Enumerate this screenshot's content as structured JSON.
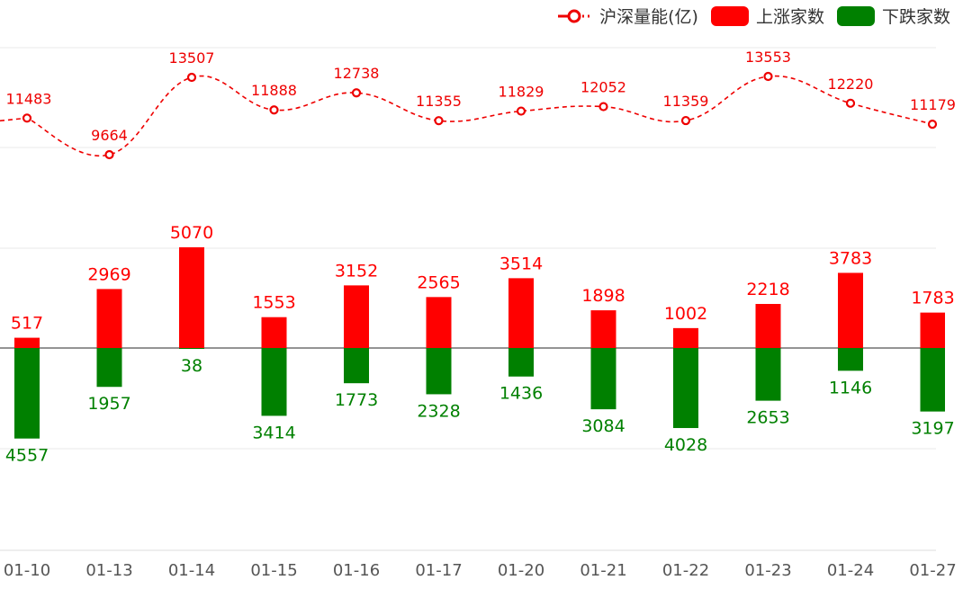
{
  "colors": {
    "up": "#ff0000",
    "down": "#008000",
    "line": "#ee0000",
    "grid": "#e8e8e8",
    "axis": "#555555",
    "tick": "#555555"
  },
  "legend": {
    "volume": "沪深量能(亿)",
    "up": "上涨家数",
    "down": "下跌家数"
  },
  "chart_data": {
    "type": "bar",
    "categories": [
      "01-10",
      "01-13",
      "01-14",
      "01-15",
      "01-16",
      "01-17",
      "01-20",
      "01-21",
      "01-22",
      "01-23",
      "01-24",
      "01-27"
    ],
    "series": [
      {
        "name": "沪深量能(亿)",
        "type": "line",
        "values": [
          11483,
          9664,
          13507,
          11888,
          12738,
          11355,
          11829,
          12052,
          11359,
          13553,
          12220,
          11179
        ]
      },
      {
        "name": "上涨家数",
        "type": "bar",
        "values": [
          517,
          2969,
          5070,
          1553,
          3152,
          2565,
          3514,
          1898,
          1002,
          2218,
          3783,
          1783
        ]
      },
      {
        "name": "下跌家数",
        "type": "bar",
        "values": [
          4557,
          1957,
          38,
          3414,
          1773,
          2328,
          1436,
          3084,
          4028,
          2653,
          1146,
          3197
        ]
      }
    ],
    "line_style": "dashed-smooth",
    "legend_position": "top-right",
    "grid": true
  }
}
